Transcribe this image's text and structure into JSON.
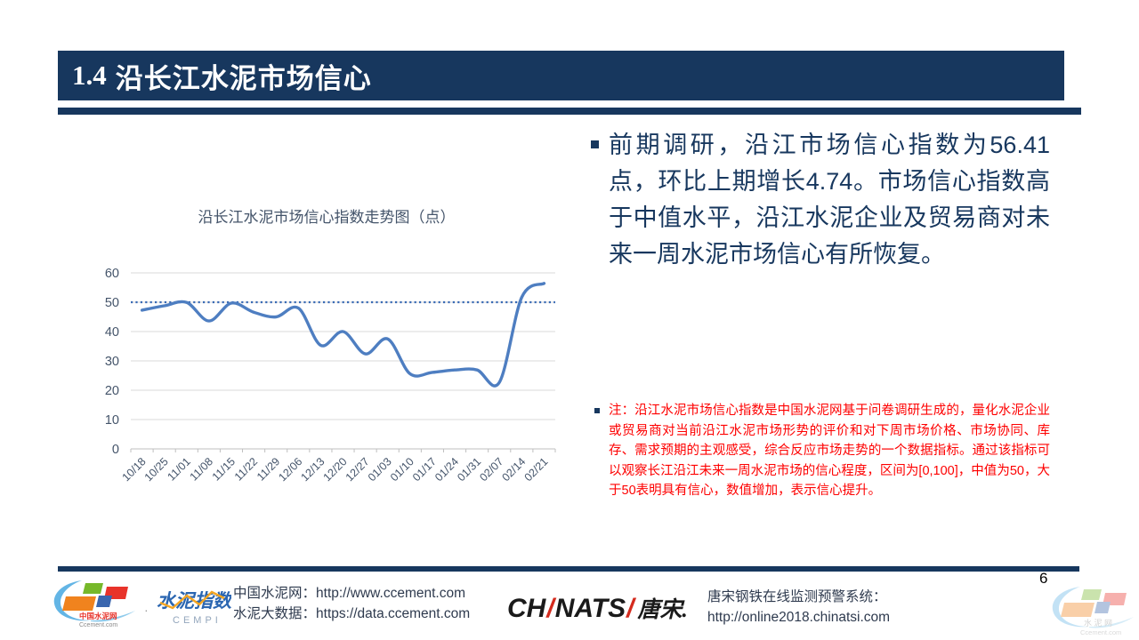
{
  "colors": {
    "navy": "#17375E",
    "line_blue": "#4E7EC1",
    "median_blue": "#3A6BB5",
    "note_red": "#FE0000",
    "grid_gray": "#DADADA"
  },
  "header": {
    "number": "1.4",
    "title": "沿长江水泥市场信心"
  },
  "main": {
    "paragraph": "前期调研，沿江市场信心指数为56.41点，环比上期增长4.74。市场信心指数高于中值水平，沿江水泥企业及贸易商对未来一周水泥市场信心有所恢复。"
  },
  "note": {
    "paragraph": "注：沿江水泥市场信心指数是中国水泥网基于问卷调研生成的，量化水泥企业或贸易商对当前沿江水泥市场形势的评价和对下周市场价格、市场协同、库存、需求预期的主观感受，综合反应市场走势的一个数据指标。通过该指标可以观察长江沿江未来一周水泥市场的信心程度，区间为[0,100]，中值为50，大于50表明具有信心，数值增加，表示信心提升。"
  },
  "chart_data": {
    "type": "line",
    "title": "沿长江水泥市场信心指数走势图（点）",
    "categories": [
      "10/18",
      "10/25",
      "11/01",
      "11/08",
      "11/15",
      "11/22",
      "11/29",
      "12/06",
      "12/13",
      "12/20",
      "12/27",
      "01/03",
      "01/10",
      "01/17",
      "01/24",
      "01/31",
      "02/07",
      "02/14",
      "02/21"
    ],
    "series": [
      {
        "name": "沿长江水泥市场信心指数",
        "values": [
          47.3,
          48.8,
          49.9,
          43.6,
          49.7,
          46.6,
          45.0,
          48.0,
          35.3,
          40.0,
          32.4,
          37.5,
          25.6,
          26.1,
          26.9,
          26.9,
          22.7,
          51.67,
          56.41
        ]
      }
    ],
    "median_line": {
      "value": 50,
      "style": "dotted"
    },
    "ylim": [
      0,
      60
    ],
    "ytick_step": 10,
    "grid": true,
    "legend": "none",
    "line_color": "#4E7EC1",
    "median_color": "#3A6BB5"
  },
  "footer": {
    "ccement_logo": {
      "name_cn": "中国水泥网",
      "domain": "Ccement.com"
    },
    "cempi_logo": {
      "name_cn": "水泥指数",
      "abbr": "CEMPI"
    },
    "separator_dot": "·",
    "links_left": [
      {
        "label": "中国水泥网：",
        "url": "http://www.ccement.com"
      },
      {
        "label": "水泥大数据：",
        "url": "https://data.ccement.com"
      }
    ],
    "chinatsi_logo": {
      "p1": "CH",
      "s1": "/",
      "p2": "NATS",
      "s2": "/",
      "cn": "唐宋."
    },
    "links_right": {
      "label": "唐宋钢铁在线监测预警系统：",
      "url": "http://online2018.chinatsi.com"
    },
    "page_number": "6",
    "watermark": {
      "name_cn": "水 泥 网",
      "domain": "Ccement.com"
    }
  }
}
